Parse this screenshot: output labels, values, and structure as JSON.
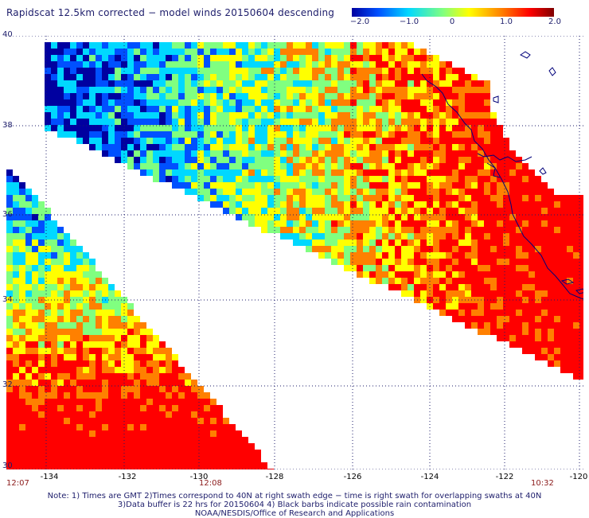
{
  "title": "Rapidscat 12.5km corrected − model winds 20150604 descending",
  "colorbar": {
    "ticks": [
      "−2.0",
      "−1.0",
      "0",
      "1.0",
      "2.0"
    ],
    "range": [
      -2.0,
      2.0
    ],
    "colors": [
      "#0000a0",
      "#0050ff",
      "#00d8ff",
      "#80ff80",
      "#ffff00",
      "#ff8000",
      "#ff0000",
      "#800000"
    ]
  },
  "map": {
    "lat_labels": [
      "40",
      "38",
      "36",
      "34",
      "32",
      "30"
    ],
    "lon_labels": [
      "-134",
      "-132",
      "-130",
      "-128",
      "-126",
      "-124",
      "-122",
      "-120"
    ],
    "lat_range": [
      30,
      40
    ],
    "lon_range": [
      -134.8,
      -120
    ],
    "grid_color": "#1d1d6b",
    "coast_color": "#00007a"
  },
  "times": {
    "left": "12:07",
    "middle": "12:08",
    "right": "10:32"
  },
  "notes": [
    "Note: 1) Times are GMT 2)Times correspond to 40N at right swath edge − time is right swath for overlapping swaths at 40N",
    "3)Data buffer is 22 hrs for 20150604 4) Black barbs indicate possible rain contamination",
    "NOAA/NESDIS/Office of Research and Applications"
  ]
}
